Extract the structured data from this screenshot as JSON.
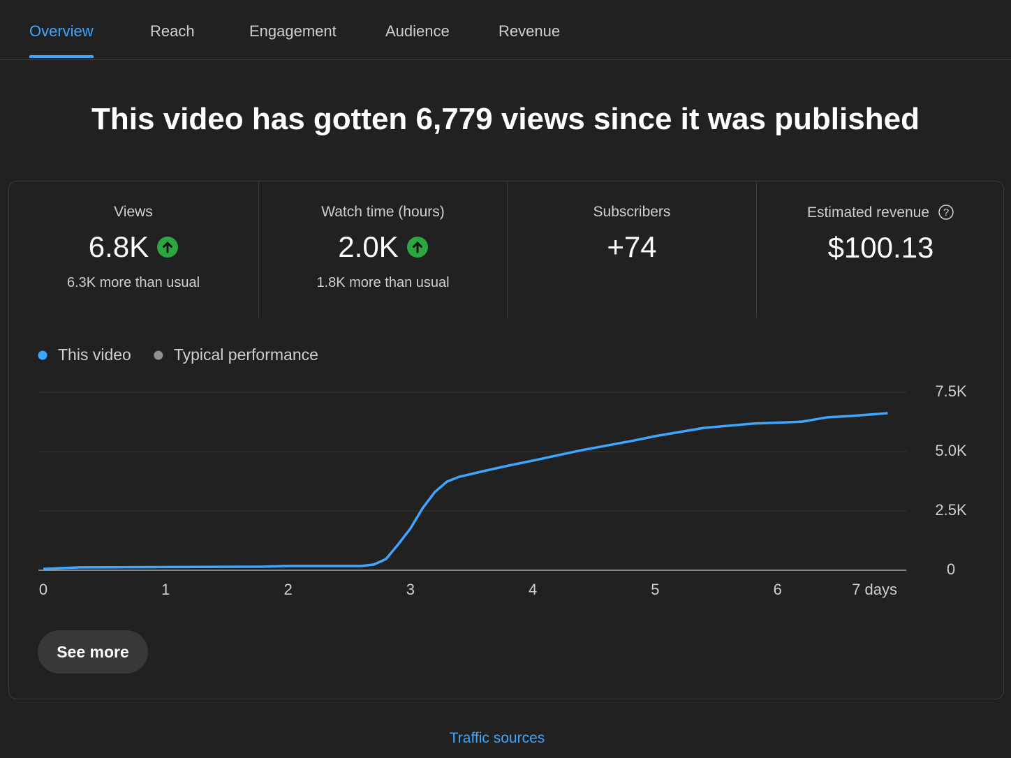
{
  "tabs": [
    "Overview",
    "Reach",
    "Engagement",
    "Audience",
    "Revenue"
  ],
  "headline": "This video has gotten 6,779 views since it was published",
  "metrics": [
    {
      "label": "Views",
      "value": "6.8K",
      "trend": "up",
      "note": "6.3K more than usual"
    },
    {
      "label": "Watch time (hours)",
      "value": "2.0K",
      "trend": "up",
      "note": "1.8K more than usual"
    },
    {
      "label": "Subscribers",
      "value": "+74"
    },
    {
      "label": "Estimated revenue",
      "value": "$100.13",
      "help": true
    }
  ],
  "chart_data": {
    "type": "line",
    "series": [
      {
        "name": "This video",
        "color": "#3ea6ff",
        "x": [
          0,
          0.3,
          1.8,
          2.0,
          2.6,
          2.7,
          2.8,
          2.9,
          3.0,
          3.1,
          3.2,
          3.3,
          3.4,
          3.6,
          3.8,
          4.0,
          4.4,
          4.8,
          5.0,
          5.4,
          5.8,
          6.2,
          6.4,
          6.6,
          6.9
        ],
        "values": [
          60,
          120,
          150,
          180,
          180,
          240,
          470,
          1090,
          1760,
          2620,
          3300,
          3740,
          3940,
          4180,
          4410,
          4620,
          5060,
          5440,
          5650,
          6000,
          6180,
          6260,
          6440,
          6500,
          6620
        ]
      },
      {
        "name": "Typical performance",
        "color": "#909090",
        "x": [],
        "values": []
      }
    ],
    "xlim": [
      0,
      7
    ],
    "xticks": [
      0,
      1,
      2,
      3,
      4,
      5,
      6,
      {
        "value": 7,
        "label": "7 days"
      }
    ],
    "ylim": [
      0,
      7500
    ],
    "yticks": [
      0,
      {
        "value": 2500,
        "label": "2.5K"
      },
      {
        "value": 5000,
        "label": "5.0K"
      },
      {
        "value": 7500,
        "label": "7.5K"
      }
    ],
    "grid": true
  },
  "button": "See more",
  "link": "Traffic sources"
}
